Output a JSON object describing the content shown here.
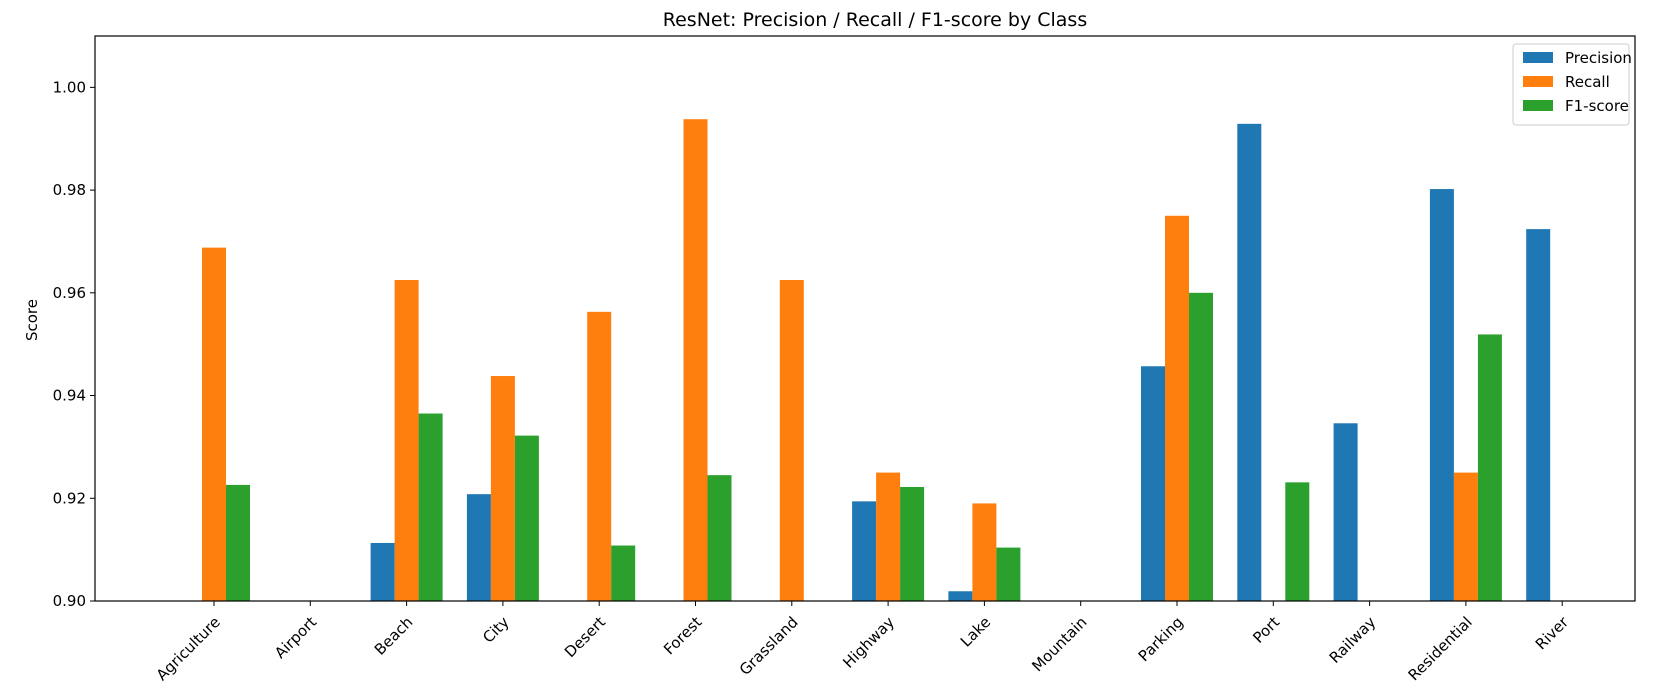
{
  "chart_data": {
    "type": "bar",
    "title": "ResNet: Precision / Recall / F1-score by Class",
    "xlabel": "",
    "ylabel": "Score",
    "ylim": [
      0.9,
      1.01
    ],
    "yticks": [
      "0.90",
      "0.92",
      "0.94",
      "0.96",
      "0.98",
      "1.00"
    ],
    "grid": false,
    "legend_position": "top-right",
    "categories": [
      "Agriculture",
      "Airport",
      "Beach",
      "City",
      "Desert",
      "Forest",
      "Grassland",
      "Highway",
      "Lake",
      "Mountain",
      "Parking",
      "Port",
      "Railway",
      "Residential",
      "River"
    ],
    "series": [
      {
        "name": "Precision",
        "color": "#1f77b4",
        "values": [
          0.9,
          0.9,
          0.9113,
          0.9208,
          0.9,
          0.9,
          0.9,
          0.9194,
          0.9019,
          0.9,
          0.9457,
          0.9929,
          0.9346,
          0.9802,
          0.9724
        ]
      },
      {
        "name": "Recall",
        "color": "#ff7f0e",
        "values": [
          0.9688,
          0.9,
          0.9625,
          0.9438,
          0.9563,
          0.9938,
          0.9625,
          0.925,
          0.919,
          0.9,
          0.975,
          0.9,
          0.9,
          0.925,
          0.9
        ]
      },
      {
        "name": "F1-score",
        "color": "#2ca02c",
        "values": [
          0.9226,
          0.9,
          0.9365,
          0.9322,
          0.9108,
          0.9245,
          0.9,
          0.9222,
          0.9104,
          0.9,
          0.96,
          0.9231,
          0.9,
          0.9519,
          0.9
        ]
      }
    ]
  }
}
